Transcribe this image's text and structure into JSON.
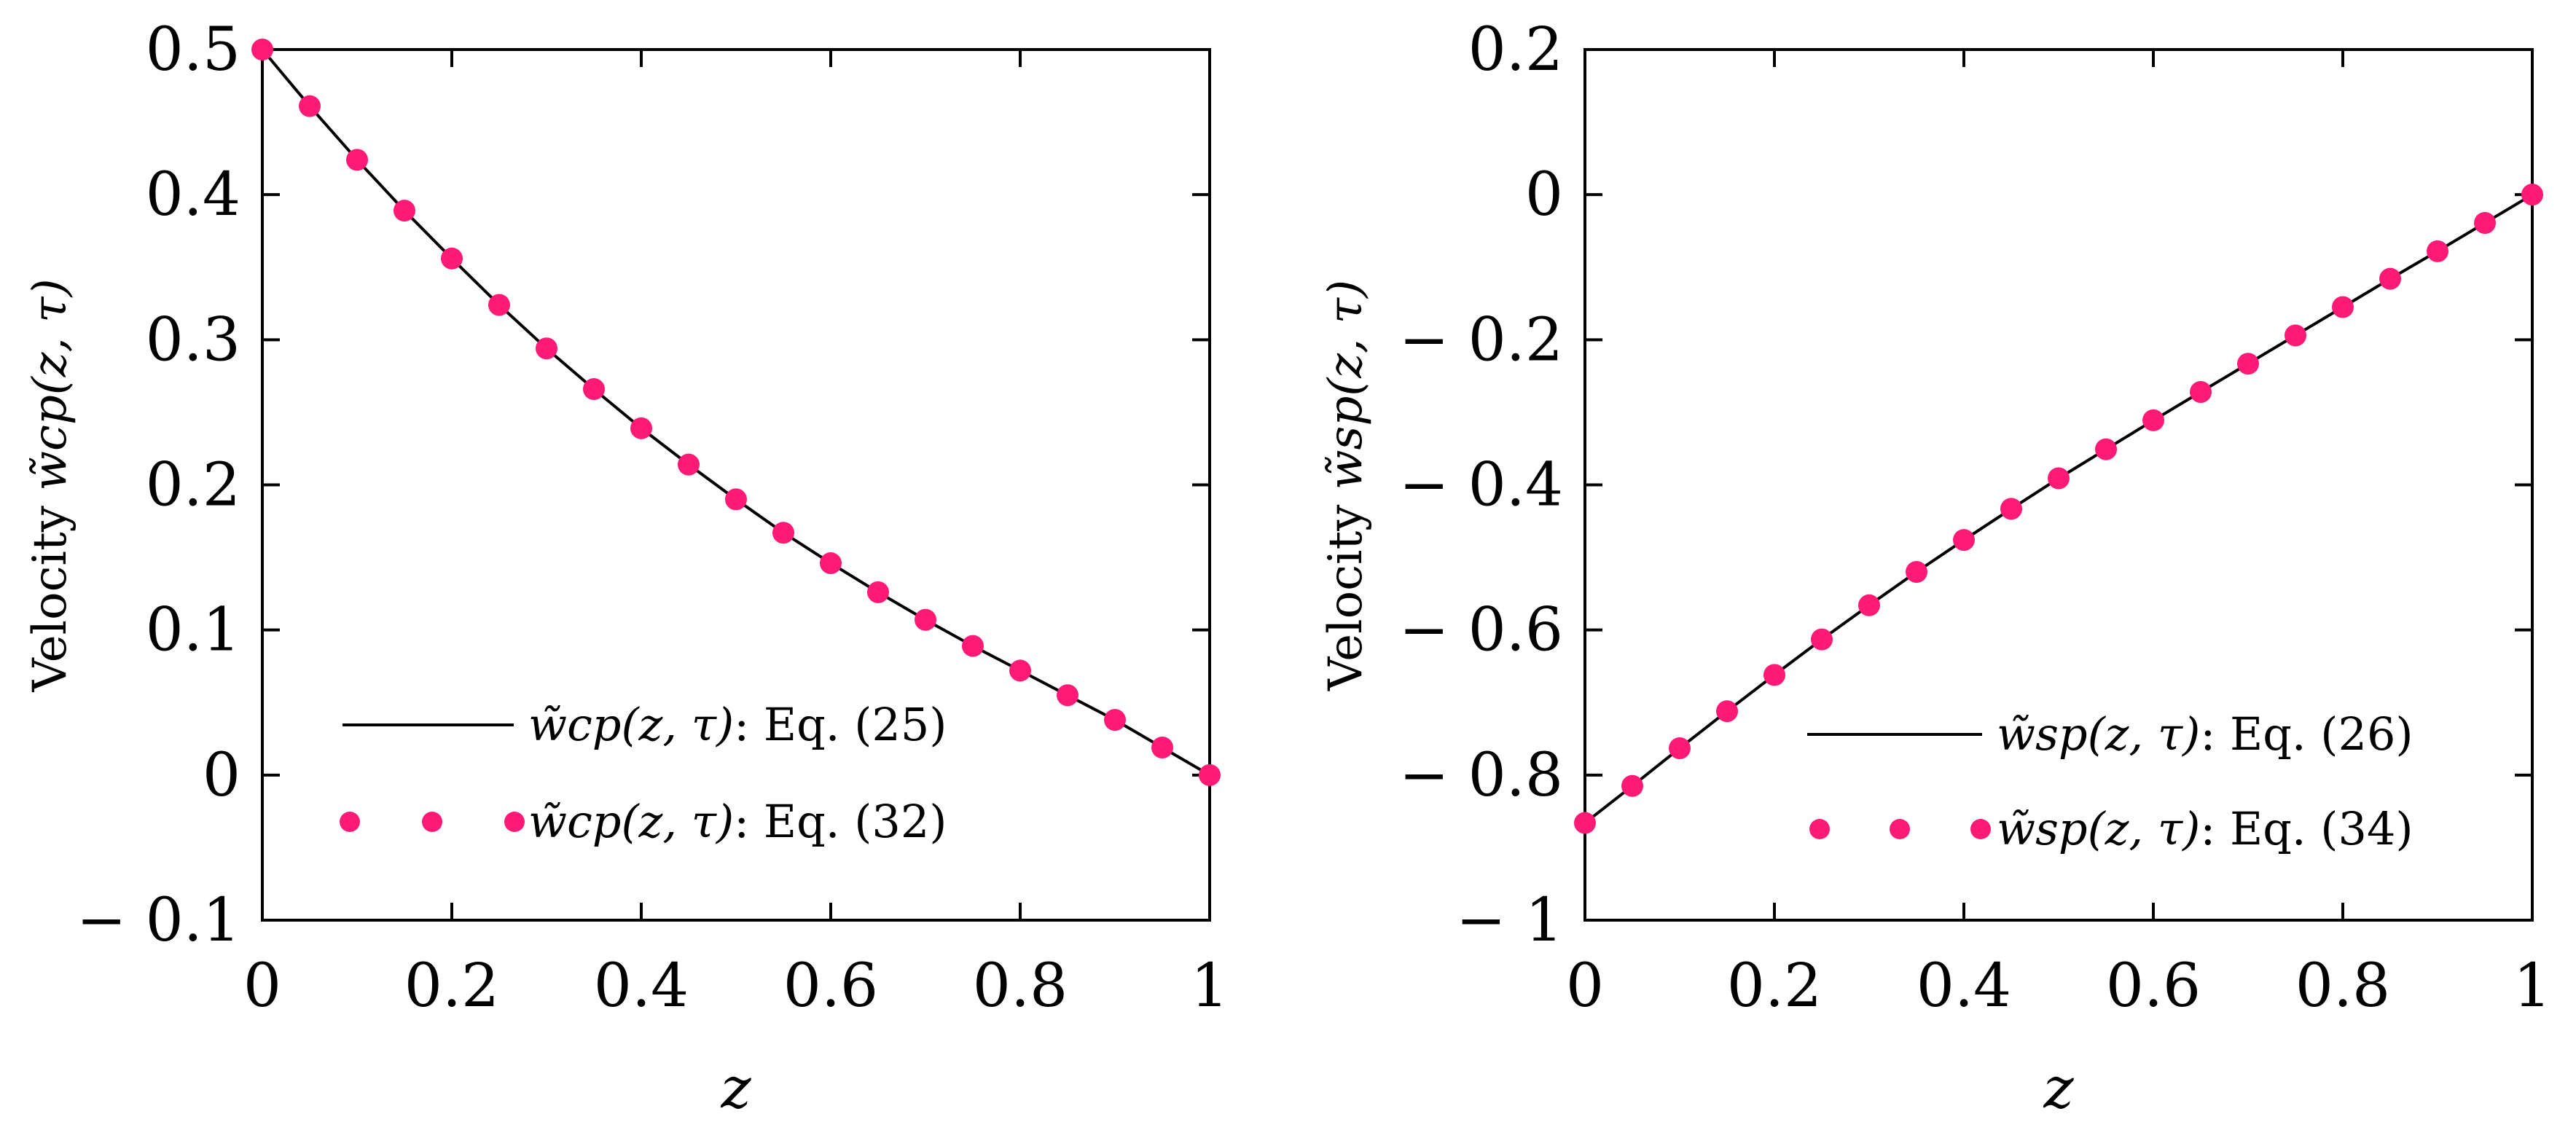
{
  "chart_data": [
    {
      "type": "line",
      "title": "",
      "xlabel": "z",
      "ylabel_prefix": "Velocity ",
      "ylabel_math": "w̃cp(z, τ)",
      "xlim": [
        0,
        1
      ],
      "ylim": [
        -0.1,
        0.5
      ],
      "xticks": [
        0,
        0.2,
        0.4,
        0.6,
        0.8,
        1
      ],
      "xtick_labels": [
        "0",
        "0.2",
        "0.4",
        "0.6",
        "0.8",
        "1"
      ],
      "yticks": [
        -0.1,
        0,
        0.1,
        0.2,
        0.3,
        0.4,
        0.5
      ],
      "ytick_labels": [
        "− 0.1",
        "0",
        "0.1",
        "0.2",
        "0.3",
        "0.4",
        "0.5"
      ],
      "legend_position": "bottom-left",
      "series": [
        {
          "name": "w̃cp(z, τ): Eq. (25)",
          "legend_math": "w̃cp(z, τ)",
          "legend_eq": ": Eq. (25)",
          "style": "line",
          "color": "#000000",
          "x": [
            0,
            0.05,
            0.1,
            0.15,
            0.2,
            0.25,
            0.3,
            0.35,
            0.4,
            0.45,
            0.5,
            0.55,
            0.6,
            0.65,
            0.7,
            0.75,
            0.8,
            0.85,
            0.9,
            0.95,
            1
          ],
          "y": [
            0.5,
            0.461,
            0.424,
            0.389,
            0.356,
            0.324,
            0.294,
            0.266,
            0.239,
            0.214,
            0.19,
            0.167,
            0.146,
            0.126,
            0.107,
            0.089,
            0.072,
            0.055,
            0.038,
            0.019,
            0
          ]
        },
        {
          "name": "w̃cp(z, τ): Eq. (32)",
          "legend_math": "w̃cp(z, τ)",
          "legend_eq": ": Eq. (32)",
          "style": "dots",
          "color": "#ff1a75",
          "x": [
            0,
            0.05,
            0.1,
            0.15,
            0.2,
            0.25,
            0.3,
            0.35,
            0.4,
            0.45,
            0.5,
            0.55,
            0.6,
            0.65,
            0.7,
            0.75,
            0.8,
            0.85,
            0.9,
            0.95,
            1
          ],
          "y": [
            0.5,
            0.461,
            0.424,
            0.389,
            0.356,
            0.324,
            0.294,
            0.266,
            0.239,
            0.214,
            0.19,
            0.167,
            0.146,
            0.126,
            0.107,
            0.089,
            0.072,
            0.055,
            0.038,
            0.019,
            0
          ]
        }
      ]
    },
    {
      "type": "line",
      "title": "",
      "xlabel": "z",
      "ylabel_prefix": "Velocity ",
      "ylabel_math": "w̃sp(z, τ)",
      "xlim": [
        0,
        1
      ],
      "ylim": [
        -1,
        0.2
      ],
      "xticks": [
        0,
        0.2,
        0.4,
        0.6,
        0.8,
        1
      ],
      "xtick_labels": [
        "0",
        "0.2",
        "0.4",
        "0.6",
        "0.8",
        "1"
      ],
      "yticks": [
        -1,
        -0.8,
        -0.6,
        -0.4,
        -0.2,
        0,
        0.2
      ],
      "ytick_labels": [
        "− 1",
        "− 0.8",
        "− 0.6",
        "− 0.4",
        "− 0.2",
        "0",
        "0.2"
      ],
      "legend_position": "bottom-right",
      "series": [
        {
          "name": "w̃sp(z, τ): Eq. (26)",
          "legend_math": "w̃sp(z, τ)",
          "legend_eq": ": Eq. (26)",
          "style": "line",
          "color": "#000000",
          "x": [
            0,
            0.05,
            0.1,
            0.15,
            0.2,
            0.25,
            0.3,
            0.35,
            0.4,
            0.45,
            0.5,
            0.55,
            0.6,
            0.65,
            0.7,
            0.75,
            0.8,
            0.85,
            0.9,
            0.95,
            1
          ],
          "y": [
            -0.866,
            -0.815,
            -0.763,
            -0.712,
            -0.662,
            -0.613,
            -0.566,
            -0.52,
            -0.476,
            -0.433,
            -0.391,
            -0.351,
            -0.311,
            -0.272,
            -0.233,
            -0.194,
            -0.155,
            -0.116,
            -0.078,
            -0.039,
            0
          ]
        },
        {
          "name": "w̃sp(z, τ): Eq. (34)",
          "legend_math": "w̃sp(z, τ)",
          "legend_eq": ": Eq. (34)",
          "style": "dots",
          "color": "#ff1a75",
          "x": [
            0,
            0.05,
            0.1,
            0.15,
            0.2,
            0.25,
            0.3,
            0.35,
            0.4,
            0.45,
            0.5,
            0.55,
            0.6,
            0.65,
            0.7,
            0.75,
            0.8,
            0.85,
            0.9,
            0.95,
            1
          ],
          "y": [
            -0.866,
            -0.815,
            -0.763,
            -0.712,
            -0.662,
            -0.613,
            -0.566,
            -0.52,
            -0.476,
            -0.433,
            -0.391,
            -0.351,
            -0.311,
            -0.272,
            -0.233,
            -0.194,
            -0.155,
            -0.116,
            -0.078,
            -0.039,
            0
          ]
        }
      ]
    }
  ]
}
